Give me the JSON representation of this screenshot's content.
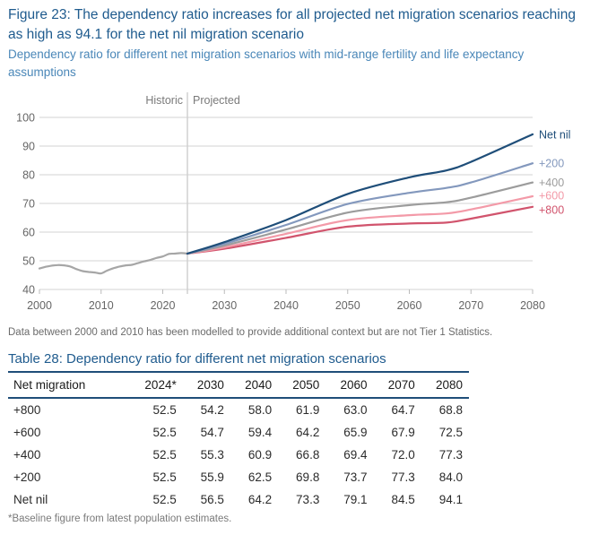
{
  "figure": {
    "title": "Figure 23: The dependency ratio increases for all projected net migration scenarios reaching as high as 94.1 for the net nil migration scenario",
    "subtitle": "Dependency ratio for different net migration scenarios with mid-range fertility and life expectancy assumptions",
    "note": "Data between 2000 and 2010 has been modelled to provide additional context but are not Tier 1 Statistics."
  },
  "chart_data": {
    "type": "line",
    "title": "Figure 23: The dependency ratio increases for all projected net migration scenarios reaching as high as 94.1 for the net nil migration scenario",
    "subtitle": "Dependency ratio for different net migration scenarios with mid-range fertility and life expectancy assumptions",
    "xlabel": "",
    "ylabel": "",
    "xlim": [
      2000,
      2080
    ],
    "ylim": [
      40,
      100
    ],
    "x_ticks": [
      2000,
      2010,
      2020,
      2030,
      2040,
      2050,
      2060,
      2070,
      2080
    ],
    "y_ticks": [
      40,
      50,
      60,
      70,
      80,
      90,
      100
    ],
    "grid": "horizontal",
    "legend": "direct-labels-right",
    "divider": {
      "x": 2024,
      "left_label": "Historic",
      "right_label": "Projected"
    },
    "series": [
      {
        "name": "Historic",
        "color": "#a6a6a6",
        "x": [
          2000,
          2001,
          2002,
          2003,
          2004,
          2005,
          2006,
          2007,
          2008,
          2009,
          2010,
          2011,
          2012,
          2013,
          2014,
          2015,
          2016,
          2017,
          2018,
          2019,
          2020,
          2021,
          2022,
          2023,
          2024
        ],
        "y": [
          47.3,
          47.9,
          48.3,
          48.5,
          48.4,
          48.0,
          47.1,
          46.4,
          46.1,
          45.9,
          45.6,
          46.6,
          47.4,
          48.0,
          48.4,
          48.6,
          49.2,
          49.8,
          50.3,
          51.0,
          51.5,
          52.4,
          52.5,
          52.7,
          52.5
        ]
      },
      {
        "name": "+800",
        "label": "+800",
        "color": "#d1546d",
        "x": [
          2024,
          2030,
          2040,
          2050,
          2060,
          2066,
          2070,
          2080
        ],
        "y": [
          52.5,
          54.2,
          58.0,
          61.9,
          63.0,
          63.3,
          64.7,
          68.8
        ]
      },
      {
        "name": "+600",
        "label": "+600",
        "color": "#f39aa8",
        "x": [
          2024,
          2030,
          2040,
          2050,
          2060,
          2066,
          2070,
          2080
        ],
        "y": [
          52.5,
          54.7,
          59.4,
          64.2,
          65.9,
          66.5,
          67.9,
          72.5
        ]
      },
      {
        "name": "+400",
        "label": "+400",
        "color": "#9c9c9c",
        "x": [
          2024,
          2030,
          2040,
          2050,
          2060,
          2066,
          2070,
          2080
        ],
        "y": [
          52.5,
          55.3,
          60.9,
          66.8,
          69.4,
          70.4,
          72.0,
          77.3
        ]
      },
      {
        "name": "+200",
        "label": "+200",
        "color": "#8398bd",
        "x": [
          2024,
          2030,
          2040,
          2050,
          2060,
          2066,
          2070,
          2080
        ],
        "y": [
          52.5,
          55.9,
          62.5,
          69.8,
          73.7,
          75.4,
          77.3,
          84.0
        ]
      },
      {
        "name": "Net nil",
        "label": "Net nil",
        "color": "#1f4e79",
        "x": [
          2024,
          2030,
          2040,
          2050,
          2060,
          2066,
          2070,
          2080
        ],
        "y": [
          52.5,
          56.5,
          64.2,
          73.3,
          79.1,
          81.5,
          84.5,
          94.1
        ]
      }
    ]
  },
  "table": {
    "title": "Table 28: Dependency ratio for different net migration scenarios",
    "headers": [
      "Net migration",
      "2024*",
      "2030",
      "2040",
      "2050",
      "2060",
      "2070",
      "2080"
    ],
    "rows": [
      [
        "+800",
        "52.5",
        "54.2",
        "58.0",
        "61.9",
        "63.0",
        "64.7",
        "68.8"
      ],
      [
        "+600",
        "52.5",
        "54.7",
        "59.4",
        "64.2",
        "65.9",
        "67.9",
        "72.5"
      ],
      [
        "+400",
        "52.5",
        "55.3",
        "60.9",
        "66.8",
        "69.4",
        "72.0",
        "77.3"
      ],
      [
        "+200",
        "52.5",
        "55.9",
        "62.5",
        "69.8",
        "73.7",
        "77.3",
        "84.0"
      ],
      [
        "Net nil",
        "52.5",
        "56.5",
        "64.2",
        "73.3",
        "79.1",
        "84.5",
        "94.1"
      ]
    ],
    "footnote": "*Baseline figure from latest population estimates."
  }
}
